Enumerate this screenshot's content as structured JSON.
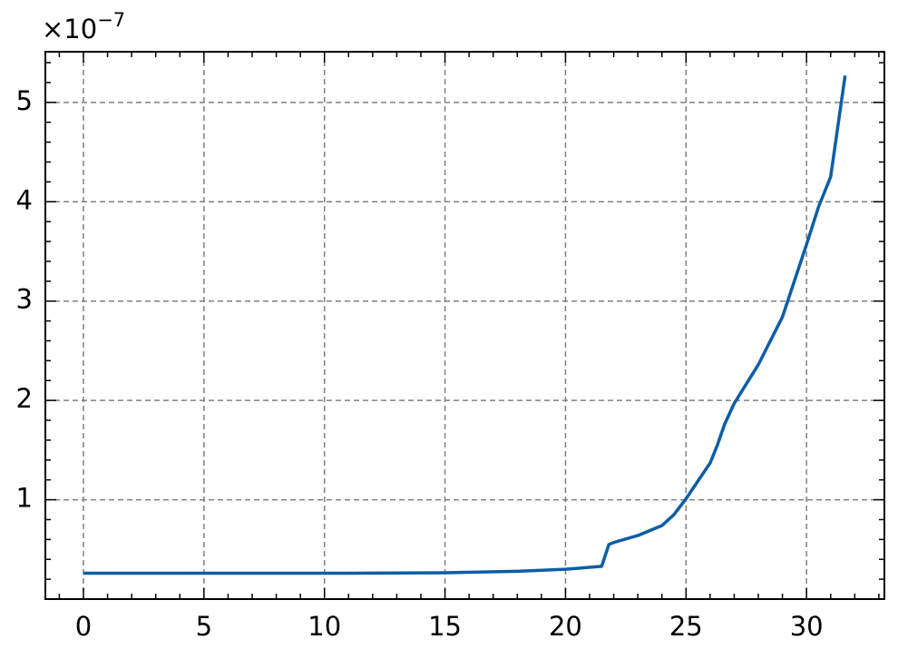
{
  "chart_data": {
    "type": "line",
    "y_multiplier": {
      "base": "×10",
      "exponent": "−7"
    },
    "x": [
      0,
      5,
      10,
      15,
      18,
      20,
      21.5,
      21.8,
      22,
      23,
      24,
      24.5,
      25,
      25.5,
      26,
      26.3,
      26.6,
      27,
      28,
      29,
      30,
      30.5,
      31,
      31.6
    ],
    "series": [
      {
        "color": "#0c5da5",
        "values": [
          0.26,
          0.26,
          0.26,
          0.265,
          0.28,
          0.3,
          0.33,
          0.55,
          0.57,
          0.64,
          0.74,
          0.85,
          1.01,
          1.19,
          1.37,
          1.55,
          1.76,
          1.97,
          2.36,
          2.84,
          3.57,
          3.95,
          4.25,
          5.27
        ]
      }
    ],
    "xlim": [
      -1.58,
      33.23
    ],
    "ylim": [
      0,
      5.51
    ],
    "xticks": [
      0,
      5,
      10,
      15,
      20,
      25,
      30
    ],
    "yticks": [
      1,
      2,
      3,
      4,
      5
    ],
    "xminorticks": [
      -1,
      1,
      2,
      3,
      4,
      6,
      7,
      8,
      9,
      11,
      12,
      13,
      14,
      16,
      17,
      18,
      19,
      21,
      22,
      23,
      24,
      26,
      27,
      28,
      29,
      31,
      32,
      33
    ],
    "yminorticks": [
      0.2,
      0.4,
      0.6,
      0.8,
      1.2,
      1.4,
      1.6,
      1.8,
      2.2,
      2.4,
      2.6,
      2.8,
      3.2,
      3.4,
      3.6,
      3.8,
      4.2,
      4.4,
      4.6,
      4.8,
      5.2,
      5.4
    ],
    "grid": true
  }
}
